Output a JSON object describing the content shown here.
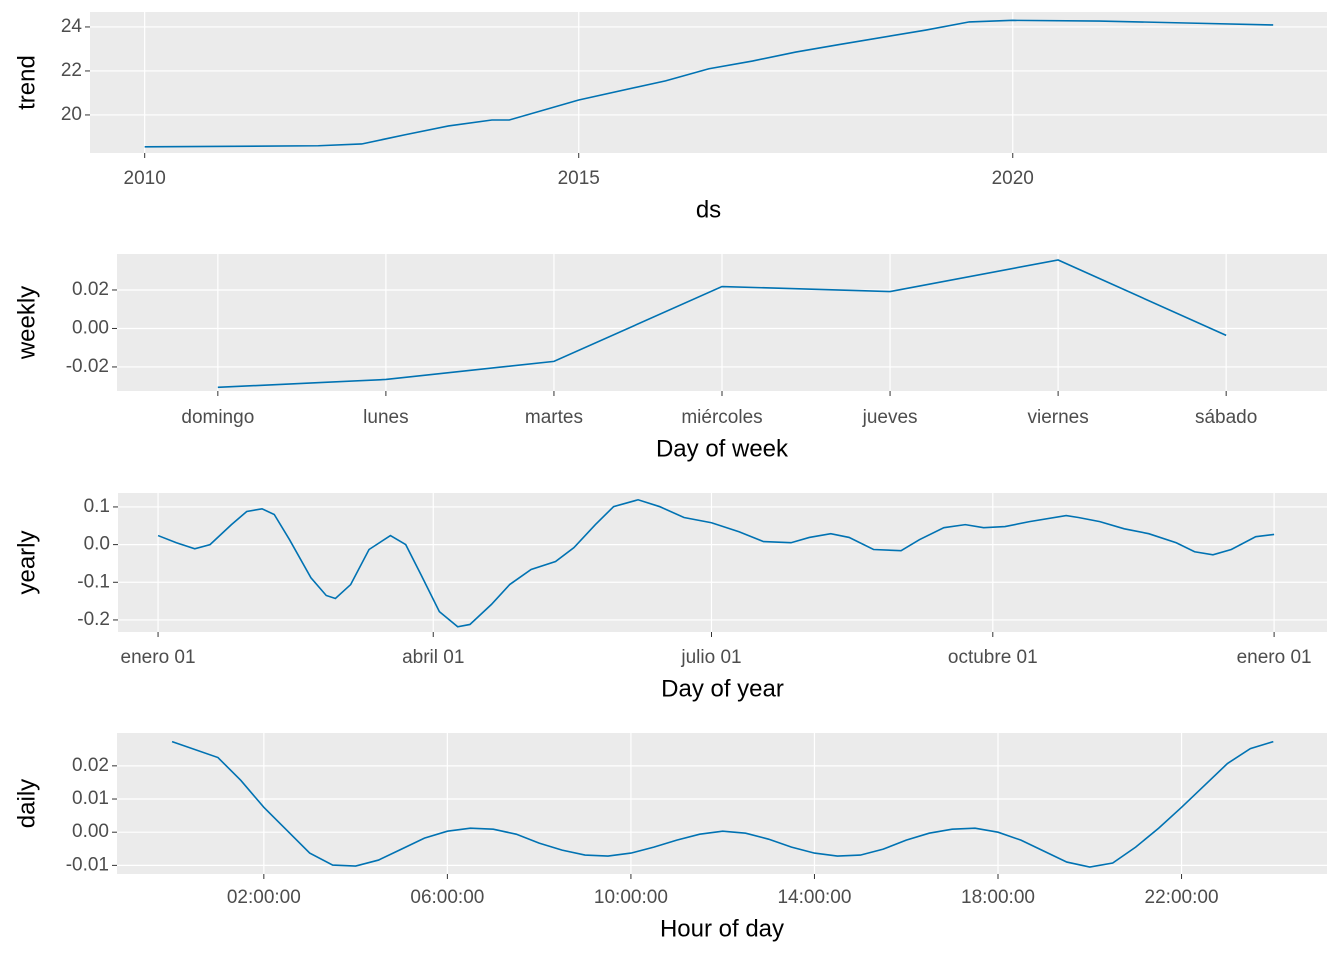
{
  "chart_data": [
    {
      "type": "line",
      "x_label": "ds",
      "y_label": "trend",
      "color": "#0072B2",
      "grid": true,
      "x": [
        2010,
        2012,
        2012.5,
        2013,
        2013.5,
        2014,
        2014.2,
        2015,
        2016,
        2016.5,
        2017,
        2017.5,
        2018,
        2019,
        2019.5,
        2020,
        2021,
        2022,
        2023
      ],
      "values": [
        18.55,
        18.6,
        18.68,
        19.1,
        19.5,
        19.77,
        19.77,
        20.68,
        21.55,
        22.1,
        22.45,
        22.86,
        23.2,
        23.86,
        24.23,
        24.3,
        24.27,
        24.18,
        24.09
      ],
      "xlim": [
        2009.37,
        2023.62
      ],
      "xticks": [
        2010,
        2015,
        2020
      ],
      "ylim": [
        18.27,
        24.68
      ],
      "yticks": [
        20,
        22,
        24
      ]
    },
    {
      "type": "line",
      "x_label": "Day of week",
      "y_label": "weekly",
      "color": "#0072B2",
      "grid": true,
      "categories": [
        "domingo",
        "lunes",
        "martes",
        "miércoles",
        "jueves",
        "viernes",
        "sábado"
      ],
      "values": [
        -0.0306,
        -0.0265,
        -0.0171,
        0.0218,
        0.0192,
        0.0356,
        -0.0036
      ],
      "ylim": [
        -0.0325,
        0.0387
      ],
      "yticks": [
        -0.02,
        {
          "value": 0,
          "label": "0.00"
        },
        0.02
      ]
    },
    {
      "type": "line",
      "x_label": "Day of year",
      "y_label": "yearly",
      "color": "#0072B2",
      "grid": true,
      "x": [
        0,
        6,
        12,
        17,
        24,
        29,
        34,
        38,
        43,
        50,
        55,
        58,
        63,
        69,
        76,
        81,
        86,
        92,
        98,
        102,
        109,
        115,
        122,
        130,
        136,
        143,
        149,
        157,
        164,
        172,
        181,
        190,
        198,
        207,
        213,
        220,
        226,
        234,
        243,
        249,
        257,
        264,
        270,
        277,
        285,
        297,
        301,
        308,
        316,
        324,
        333,
        339,
        345,
        351,
        359,
        365
      ],
      "values": [
        0.024,
        0.005,
        -0.011,
        0.0,
        0.053,
        0.088,
        0.095,
        0.08,
        0.013,
        -0.088,
        -0.135,
        -0.143,
        -0.106,
        -0.013,
        0.024,
        0.0,
        -0.08,
        -0.178,
        -0.218,
        -0.212,
        -0.159,
        -0.106,
        -0.066,
        -0.045,
        -0.008,
        0.053,
        0.101,
        0.119,
        0.101,
        0.072,
        0.058,
        0.034,
        0.008,
        0.005,
        0.019,
        0.029,
        0.019,
        -0.013,
        -0.016,
        0.013,
        0.045,
        0.053,
        0.045,
        0.048,
        0.061,
        0.077,
        0.072,
        0.061,
        0.042,
        0.029,
        0.005,
        -0.019,
        -0.027,
        -0.013,
        0.021,
        0.027
      ],
      "xlim": [
        -13.1,
        382.3
      ],
      "xticks": [
        {
          "value": 0,
          "label": "enero 01"
        },
        {
          "value": 90,
          "label": "abril 01"
        },
        {
          "value": 181,
          "label": "julio 01"
        },
        {
          "value": 273,
          "label": "octubre 01"
        },
        {
          "value": 365,
          "label": "enero 01"
        }
      ],
      "ylim": [
        -0.232,
        0.137
      ],
      "yticks": [
        -0.2,
        -0.1,
        {
          "value": 0,
          "label": "0.0"
        },
        0.1
      ]
    },
    {
      "type": "line",
      "x_label": "Hour of day",
      "y_label": "daily",
      "color": "#0072B2",
      "grid": true,
      "x": [
        0,
        1,
        1.5,
        2,
        2.5,
        3,
        3.5,
        4,
        4.5,
        5,
        5.5,
        6,
        6.5,
        7,
        7.5,
        8,
        8.5,
        9,
        9.5,
        10,
        10.5,
        11,
        11.5,
        12,
        12.5,
        13,
        13.5,
        14,
        14.5,
        15,
        15.5,
        16,
        16.5,
        17,
        17.5,
        18,
        18.5,
        19,
        19.5,
        20,
        20.5,
        21,
        21.5,
        22,
        22.5,
        23,
        23.5,
        24
      ],
      "values": [
        0.0273,
        0.0225,
        0.0156,
        0.0075,
        0.0006,
        -0.0063,
        -0.0099,
        -0.0102,
        -0.0084,
        -0.0051,
        -0.0018,
        0.0003,
        0.0012,
        0.0009,
        -0.0006,
        -0.0033,
        -0.0054,
        -0.0069,
        -0.0072,
        -0.0063,
        -0.0045,
        -0.0024,
        -0.0006,
        0.0003,
        -0.0003,
        -0.0021,
        -0.0045,
        -0.0063,
        -0.0072,
        -0.0069,
        -0.0051,
        -0.0024,
        -0.0003,
        0.0009,
        0.0012,
        0.0,
        -0.0024,
        -0.0057,
        -0.009,
        -0.0105,
        -0.0093,
        -0.0045,
        0.0012,
        0.0075,
        0.0141,
        0.0207,
        0.0252,
        0.0273
      ],
      "xlim": [
        -1.2,
        25.17
      ],
      "xticks": [
        {
          "value": 2,
          "label": "02:00:00"
        },
        {
          "value": 6,
          "label": "06:00:00"
        },
        {
          "value": 10,
          "label": "10:00:00"
        },
        {
          "value": 14,
          "label": "14:00:00"
        },
        {
          "value": 18,
          "label": "18:00:00"
        },
        {
          "value": 22,
          "label": "22:00:00"
        }
      ],
      "ylim": [
        -0.0126,
        0.0299
      ],
      "yticks": [
        -0.01,
        {
          "value": 0,
          "label": "0.00"
        },
        0.01,
        0.02
      ]
    }
  ]
}
